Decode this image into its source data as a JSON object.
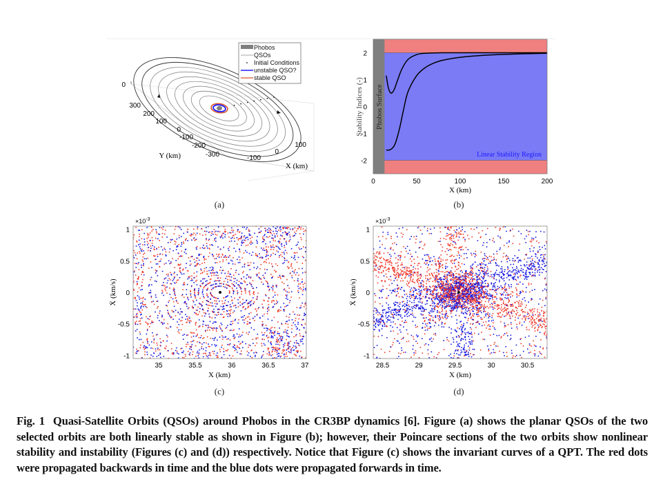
{
  "panel_labels": [
    "(a)",
    "(b)",
    "(c)",
    "(d)"
  ],
  "caption": {
    "label": "Fig. 1",
    "text": "Quasi-Satellite Orbits (QSOs) around Phobos in the CR3BP dynamics [6]. Figure (a) shows the planar QSOs of the two selected orbits are both linearly stable as shown in Figure (b); however, their Poincare sections of the two orbits show nonlinear stability and instability (Figures (c) and (d)) respectively. Notice that Figure (c) shows the invariant curves of a QPT. The red dots were propagated backwards in time and the blue dots were propagated forwards in time."
  },
  "colors": {
    "phobos": "#7f7f7f",
    "qso": "#555555",
    "unstable": "#1a1aff",
    "stable": "#d9532b",
    "red_band": "#f08080",
    "blue_region": "#7b7bf6",
    "fwd_dots": "#1515e0",
    "bwd_dots": "#f03a2a"
  },
  "chart_data": [
    {
      "id": "a",
      "type": "line",
      "title": "",
      "xlabel": "X (km)",
      "ylabel": "Y (km)",
      "x_ticks": [
        "-100",
        "0",
        "100"
      ],
      "y_ticks": [
        "300",
        "200",
        "100",
        "0",
        "-100",
        "-200",
        "-300"
      ],
      "z_ticks": [
        "0"
      ],
      "legend": {
        "placement": "top-right",
        "entries": [
          "Phobos",
          "QSOs",
          "Initial Conditions",
          "unstable QSO?",
          "stable QSO"
        ]
      },
      "orbit_count": 9
    },
    {
      "id": "b",
      "type": "line",
      "title": "",
      "xlabel": "X (km)",
      "ylabel": "Stability Indices (-)",
      "xlim": [
        0,
        200
      ],
      "ylim": [
        -2.5,
        2.5
      ],
      "x_ticks": [
        "0",
        "50",
        "100",
        "150",
        "200"
      ],
      "y_ticks": [
        "2",
        "1",
        "0",
        "-1",
        "-2"
      ],
      "annotations": [
        "Phobos Surface",
        "Linear Stability Region"
      ],
      "phobos_surface_x": 13,
      "stability_bounds": [
        -2,
        2
      ],
      "series": [
        {
          "name": "index 1",
          "x": [
            15,
            17,
            19,
            21,
            24,
            28,
            33,
            40,
            50,
            60,
            80,
            120,
            200
          ],
          "y": [
            1.15,
            0.75,
            0.55,
            0.5,
            0.62,
            0.98,
            1.4,
            1.75,
            1.93,
            1.98,
            2.0,
            2.0,
            2.0
          ]
        },
        {
          "name": "index 2",
          "x": [
            15,
            20,
            25,
            30,
            35,
            40,
            50,
            60,
            70,
            80,
            100,
            130,
            160,
            200
          ],
          "y": [
            -1.62,
            -1.6,
            -1.4,
            -0.85,
            -0.1,
            0.55,
            1.15,
            1.45,
            1.62,
            1.72,
            1.83,
            1.91,
            1.95,
            1.98
          ]
        }
      ]
    },
    {
      "id": "c",
      "type": "scatter",
      "title": "",
      "xlabel": "X (km)",
      "ylabel": "Ẋ (km/s)",
      "y_multiplier": "×10-3",
      "xlim": [
        34.65,
        37.02
      ],
      "ylim": [
        -1.05,
        1.05
      ],
      "x_ticks": [
        "35",
        "35.5",
        "36",
        "36.5",
        "37"
      ],
      "y_ticks": [
        "1",
        "0.5",
        "0",
        "-0.5",
        "-1"
      ],
      "center": [
        35.84,
        0
      ],
      "series": [
        {
          "name": "forward (blue)"
        },
        {
          "name": "backward (red)"
        }
      ]
    },
    {
      "id": "d",
      "type": "scatter",
      "title": "",
      "xlabel": "X (km)",
      "ylabel": "Ẋ (km/s)",
      "y_multiplier": "×10-3",
      "xlim": [
        28.37,
        30.77
      ],
      "ylim": [
        -1.05,
        1.05
      ],
      "x_ticks": [
        "28.5",
        "29",
        "29.5",
        "30",
        "30.5"
      ],
      "y_ticks": [
        "1",
        "0.5",
        "0",
        "-0.5",
        "-1"
      ],
      "center": [
        29.55,
        0
      ],
      "series": [
        {
          "name": "forward (blue)"
        },
        {
          "name": "backward (red)"
        }
      ]
    }
  ]
}
